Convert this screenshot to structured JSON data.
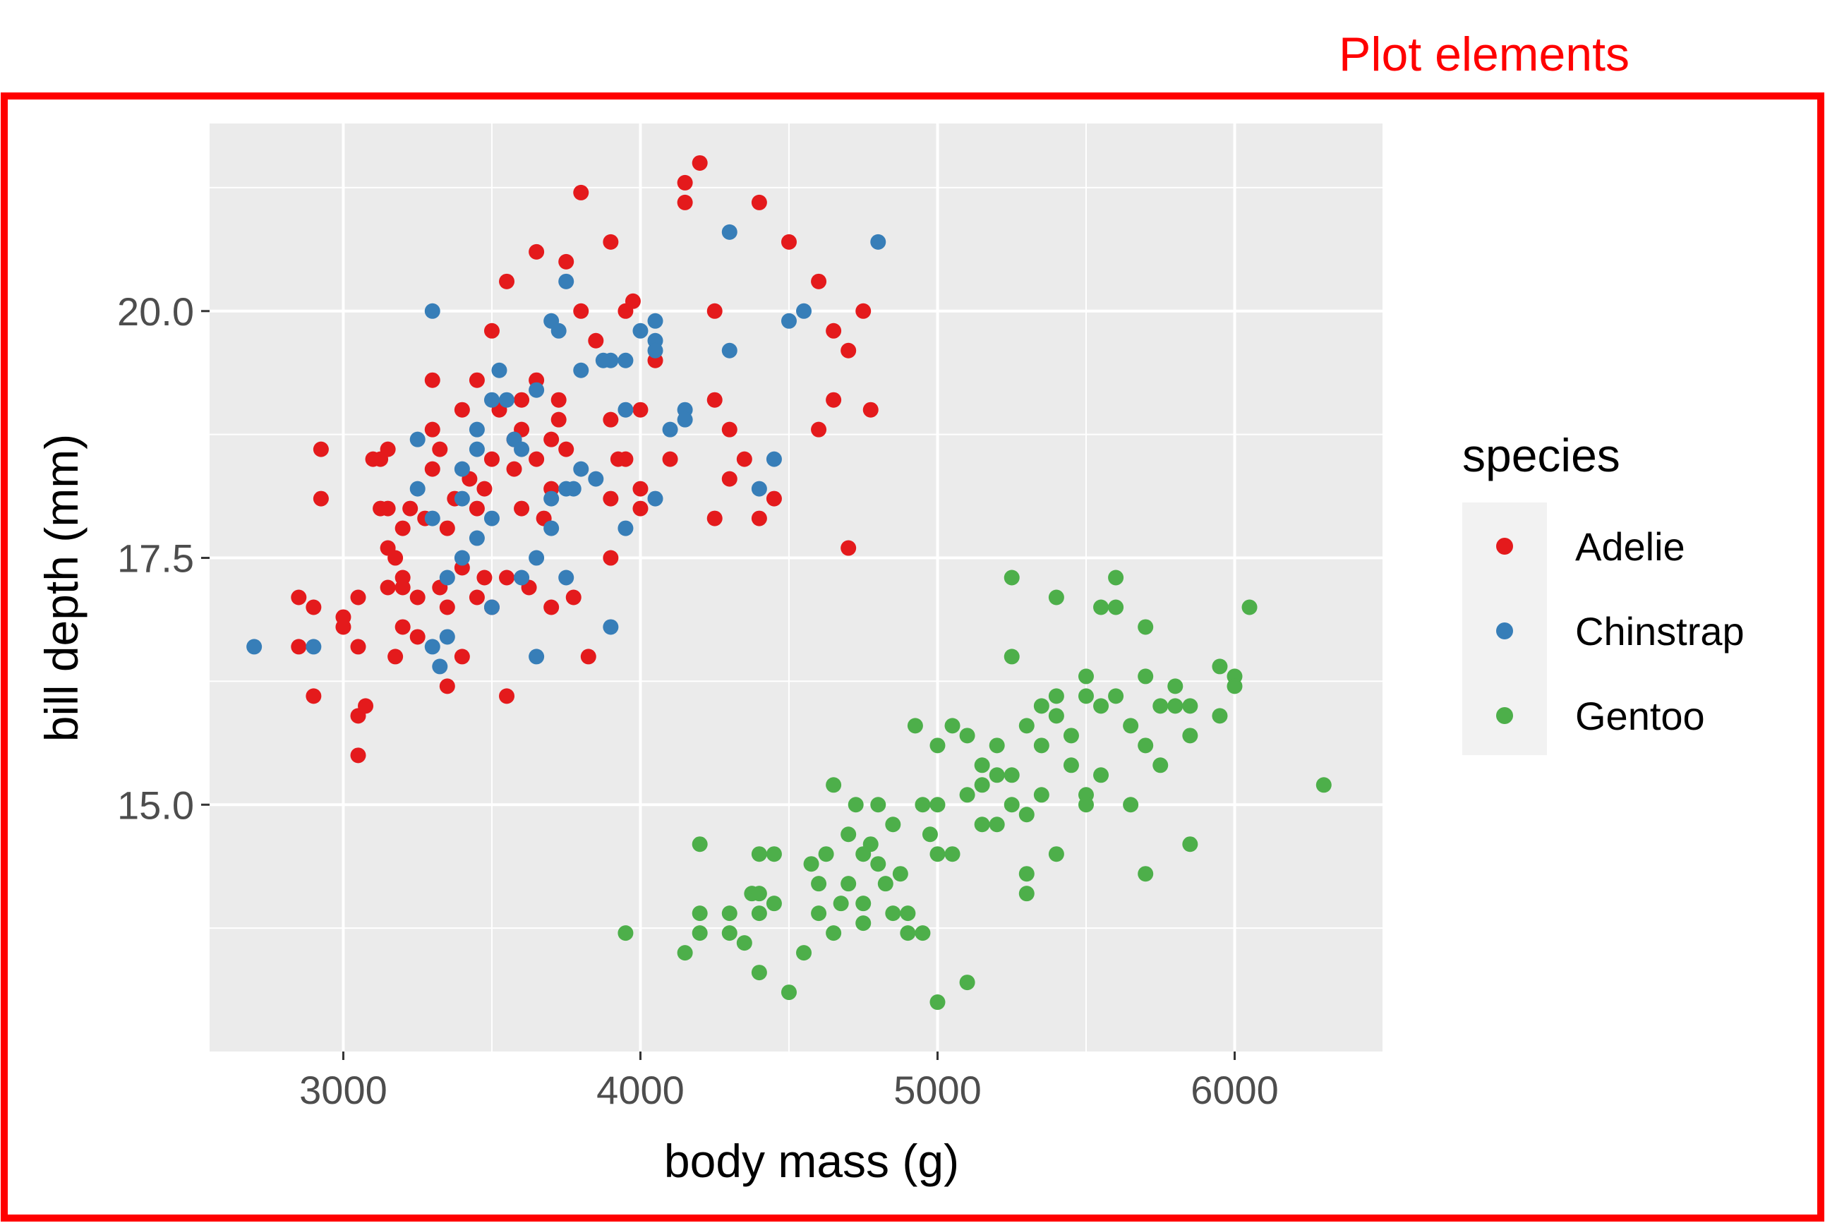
{
  "annotation": {
    "text": "Plot elements",
    "color": "#ff0000"
  },
  "chart_data": {
    "type": "scatter",
    "xlabel": "body mass (g)",
    "ylabel": "bill depth (mm)",
    "xlim": [
      2550,
      6500
    ],
    "ylim": [
      12.5,
      21.9
    ],
    "x_ticks": [
      3000,
      4000,
      5000,
      6000
    ],
    "y_ticks": [
      15.0,
      17.5,
      20.0
    ],
    "x_tick_labels": [
      "3000",
      "4000",
      "5000",
      "6000"
    ],
    "y_tick_labels": [
      "15.0",
      "17.5",
      "20.0"
    ],
    "grid": true,
    "panel_background": "#ebebeb",
    "legend": {
      "title": "species",
      "placement": "right"
    },
    "series": [
      {
        "name": "Adelie",
        "color": "#e41a1c",
        "points": [
          [
            2850,
            17.1
          ],
          [
            2850,
            16.6
          ],
          [
            2900,
            17.0
          ],
          [
            2900,
            16.1
          ],
          [
            2925,
            18.1
          ],
          [
            2925,
            18.6
          ],
          [
            3000,
            16.9
          ],
          [
            3000,
            16.8
          ],
          [
            3050,
            17.1
          ],
          [
            3050,
            16.6
          ],
          [
            3050,
            15.5
          ],
          [
            3050,
            15.9
          ],
          [
            3075,
            16.0
          ],
          [
            3100,
            18.5
          ],
          [
            3125,
            18.0
          ],
          [
            3150,
            18.6
          ],
          [
            3150,
            17.2
          ],
          [
            3175,
            17.5
          ],
          [
            3175,
            16.5
          ],
          [
            3200,
            17.2
          ],
          [
            3200,
            17.8
          ],
          [
            3225,
            18.0
          ],
          [
            3250,
            16.7
          ],
          [
            3250,
            17.1
          ],
          [
            3275,
            17.9
          ],
          [
            3300,
            19.3
          ],
          [
            3300,
            18.4
          ],
          [
            3325,
            18.6
          ],
          [
            3325,
            17.2
          ],
          [
            3350,
            17.8
          ],
          [
            3350,
            17.0
          ],
          [
            3350,
            16.2
          ],
          [
            3375,
            18.1
          ],
          [
            3400,
            19.0
          ],
          [
            3400,
            17.4
          ],
          [
            3400,
            16.5
          ],
          [
            3425,
            18.3
          ],
          [
            3450,
            19.3
          ],
          [
            3450,
            17.1
          ],
          [
            3475,
            18.2
          ],
          [
            3500,
            19.8
          ],
          [
            3500,
            18.5
          ],
          [
            3500,
            17.0
          ],
          [
            3525,
            19.0
          ],
          [
            3550,
            20.3
          ],
          [
            3550,
            17.3
          ],
          [
            3550,
            16.1
          ],
          [
            3575,
            18.7
          ],
          [
            3600,
            18.8
          ],
          [
            3600,
            18.0
          ],
          [
            3625,
            17.2
          ],
          [
            3650,
            20.6
          ],
          [
            3650,
            19.3
          ],
          [
            3650,
            18.5
          ],
          [
            3675,
            17.9
          ],
          [
            3700,
            18.7
          ],
          [
            3700,
            17.0
          ],
          [
            3725,
            19.1
          ],
          [
            3750,
            20.5
          ],
          [
            3750,
            18.6
          ],
          [
            3775,
            17.1
          ],
          [
            3800,
            21.2
          ],
          [
            3800,
            20.0
          ],
          [
            3825,
            16.5
          ],
          [
            3850,
            19.7
          ],
          [
            3900,
            20.7
          ],
          [
            3900,
            18.9
          ],
          [
            3900,
            17.5
          ],
          [
            3925,
            18.5
          ],
          [
            3950,
            20.0
          ],
          [
            3975,
            20.1
          ],
          [
            4000,
            19.0
          ],
          [
            4000,
            18.0
          ],
          [
            4050,
            19.5
          ],
          [
            4100,
            18.5
          ],
          [
            4150,
            21.1
          ],
          [
            4150,
            21.3
          ],
          [
            4200,
            21.5
          ],
          [
            4250,
            20.0
          ],
          [
            4250,
            17.9
          ],
          [
            4300,
            18.3
          ],
          [
            4350,
            18.5
          ],
          [
            4400,
            21.1
          ],
          [
            4450,
            18.1
          ],
          [
            4500,
            20.7
          ],
          [
            4600,
            20.3
          ],
          [
            4600,
            18.8
          ],
          [
            4650,
            19.1
          ],
          [
            4700,
            19.6
          ],
          [
            4700,
            17.6
          ],
          [
            4750,
            20.0
          ],
          [
            4775,
            19.0
          ],
          [
            4650,
            19.8
          ],
          [
            3700,
            18.2
          ],
          [
            3450,
            18.0
          ],
          [
            3900,
            18.1
          ],
          [
            4000,
            18.2
          ],
          [
            3300,
            18.8
          ],
          [
            3150,
            17.6
          ],
          [
            3575,
            18.4
          ],
          [
            3600,
            19.1
          ],
          [
            3150,
            18.0
          ],
          [
            3200,
            17.3
          ],
          [
            4300,
            18.8
          ],
          [
            3950,
            18.5
          ],
          [
            3725,
            18.9
          ],
          [
            3200,
            16.8
          ],
          [
            4250,
            19.1
          ],
          [
            3125,
            18.5
          ],
          [
            3475,
            17.3
          ],
          [
            4400,
            17.9
          ]
        ]
      },
      {
        "name": "Chinstrap",
        "color": "#377eb8",
        "points": [
          [
            2700,
            16.6
          ],
          [
            2900,
            16.6
          ],
          [
            3250,
            18.7
          ],
          [
            3250,
            18.2
          ],
          [
            3300,
            20.0
          ],
          [
            3300,
            17.9
          ],
          [
            3300,
            16.6
          ],
          [
            3325,
            16.4
          ],
          [
            3350,
            17.3
          ],
          [
            3350,
            16.7
          ],
          [
            3400,
            18.4
          ],
          [
            3400,
            18.1
          ],
          [
            3400,
            17.5
          ],
          [
            3450,
            18.8
          ],
          [
            3450,
            18.6
          ],
          [
            3450,
            17.7
          ],
          [
            3500,
            19.1
          ],
          [
            3500,
            17.9
          ],
          [
            3500,
            17.0
          ],
          [
            3525,
            19.4
          ],
          [
            3550,
            19.1
          ],
          [
            3575,
            18.7
          ],
          [
            3600,
            18.6
          ],
          [
            3600,
            17.3
          ],
          [
            3650,
            19.2
          ],
          [
            3650,
            17.5
          ],
          [
            3650,
            16.5
          ],
          [
            3700,
            19.9
          ],
          [
            3700,
            18.1
          ],
          [
            3700,
            17.8
          ],
          [
            3725,
            19.8
          ],
          [
            3750,
            20.3
          ],
          [
            3750,
            18.2
          ],
          [
            3750,
            17.3
          ],
          [
            3775,
            18.2
          ],
          [
            3800,
            19.4
          ],
          [
            3800,
            18.4
          ],
          [
            3850,
            18.3
          ],
          [
            3875,
            19.5
          ],
          [
            3900,
            19.5
          ],
          [
            3900,
            16.8
          ],
          [
            3950,
            19.5
          ],
          [
            3950,
            19.0
          ],
          [
            3950,
            17.8
          ],
          [
            4000,
            19.8
          ],
          [
            4050,
            19.9
          ],
          [
            4050,
            19.7
          ],
          [
            4050,
            19.6
          ],
          [
            4050,
            18.1
          ],
          [
            4100,
            18.8
          ],
          [
            4150,
            19.0
          ],
          [
            4150,
            18.9
          ],
          [
            4300,
            20.8
          ],
          [
            4300,
            19.6
          ],
          [
            4400,
            18.2
          ],
          [
            4450,
            18.5
          ],
          [
            4500,
            19.9
          ],
          [
            4550,
            20.0
          ],
          [
            4800,
            20.7
          ]
        ]
      },
      {
        "name": "Gentoo",
        "color": "#4daf4a",
        "points": [
          [
            3950,
            13.7
          ],
          [
            4150,
            13.5
          ],
          [
            4200,
            14.6
          ],
          [
            4200,
            13.9
          ],
          [
            4200,
            13.7
          ],
          [
            4300,
            13.9
          ],
          [
            4300,
            13.7
          ],
          [
            4350,
            13.6
          ],
          [
            4375,
            14.1
          ],
          [
            4400,
            14.5
          ],
          [
            4400,
            14.1
          ],
          [
            4400,
            13.9
          ],
          [
            4400,
            13.3
          ],
          [
            4450,
            14.5
          ],
          [
            4450,
            14.0
          ],
          [
            4500,
            13.1
          ],
          [
            4550,
            13.5
          ],
          [
            4575,
            14.4
          ],
          [
            4600,
            14.2
          ],
          [
            4600,
            13.9
          ],
          [
            4625,
            14.5
          ],
          [
            4650,
            15.2
          ],
          [
            4650,
            13.7
          ],
          [
            4700,
            14.7
          ],
          [
            4700,
            14.2
          ],
          [
            4725,
            15.0
          ],
          [
            4750,
            14.5
          ],
          [
            4750,
            14.0
          ],
          [
            4750,
            13.8
          ],
          [
            4775,
            14.6
          ],
          [
            4800,
            14.4
          ],
          [
            4800,
            15.0
          ],
          [
            4825,
            14.2
          ],
          [
            4850,
            13.9
          ],
          [
            4875,
            14.3
          ],
          [
            4900,
            13.9
          ],
          [
            4900,
            13.7
          ],
          [
            4925,
            15.8
          ],
          [
            4950,
            13.7
          ],
          [
            4950,
            15.0
          ],
          [
            5000,
            15.6
          ],
          [
            5000,
            15.0
          ],
          [
            5000,
            14.5
          ],
          [
            5000,
            13.0
          ],
          [
            5050,
            15.8
          ],
          [
            5050,
            14.5
          ],
          [
            5100,
            15.7
          ],
          [
            5100,
            15.1
          ],
          [
            5100,
            13.2
          ],
          [
            5150,
            15.4
          ],
          [
            5150,
            14.8
          ],
          [
            5200,
            15.6
          ],
          [
            5200,
            15.3
          ],
          [
            5200,
            14.8
          ],
          [
            5250,
            17.3
          ],
          [
            5250,
            16.5
          ],
          [
            5250,
            15.3
          ],
          [
            5300,
            15.8
          ],
          [
            5300,
            14.9
          ],
          [
            5300,
            14.3
          ],
          [
            5300,
            14.1
          ],
          [
            5350,
            16.0
          ],
          [
            5350,
            15.1
          ],
          [
            5400,
            17.1
          ],
          [
            5400,
            16.1
          ],
          [
            5400,
            15.9
          ],
          [
            5400,
            14.5
          ],
          [
            5450,
            15.7
          ],
          [
            5500,
            16.3
          ],
          [
            5500,
            16.1
          ],
          [
            5500,
            15.1
          ],
          [
            5500,
            15.0
          ],
          [
            5550,
            17.0
          ],
          [
            5550,
            16.0
          ],
          [
            5550,
            15.3
          ],
          [
            5600,
            17.3
          ],
          [
            5600,
            17.0
          ],
          [
            5600,
            16.1
          ],
          [
            5650,
            15.0
          ],
          [
            5700,
            16.8
          ],
          [
            5700,
            16.3
          ],
          [
            5700,
            15.6
          ],
          [
            5700,
            14.3
          ],
          [
            5750,
            16.0
          ],
          [
            5800,
            16.2
          ],
          [
            5800,
            16.0
          ],
          [
            5850,
            16.0
          ],
          [
            5850,
            15.7
          ],
          [
            5850,
            14.6
          ],
          [
            5950,
            16.4
          ],
          [
            5950,
            15.9
          ],
          [
            6000,
            16.3
          ],
          [
            6000,
            16.2
          ],
          [
            6050,
            17.0
          ],
          [
            6300,
            15.2
          ],
          [
            5350,
            15.6
          ],
          [
            5450,
            15.4
          ],
          [
            4850,
            14.8
          ],
          [
            4975,
            14.7
          ],
          [
            5150,
            15.2
          ],
          [
            5650,
            15.8
          ],
          [
            5750,
            15.4
          ],
          [
            4675,
            14.0
          ],
          [
            5250,
            15.0
          ]
        ]
      }
    ]
  }
}
